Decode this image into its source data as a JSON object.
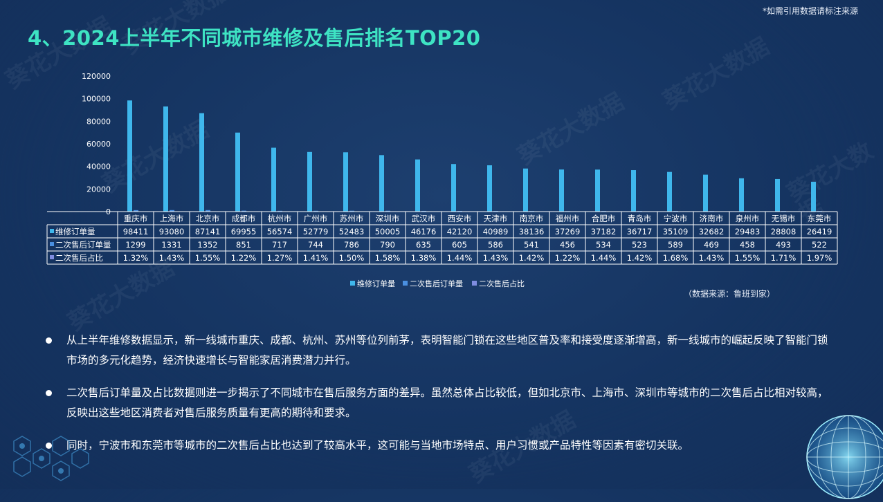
{
  "note": "*如需引用数据请标注来源",
  "title": "4、2024上半年不同城市维修及售后排名TOP20",
  "source": "（数据来源：鲁班到家）",
  "watermark": "葵花大数据",
  "chart_data": {
    "type": "bar",
    "title": "2024上半年不同城市维修及售后排名TOP20",
    "categories": [
      "重庆市",
      "上海市",
      "北京市",
      "成都市",
      "杭州市",
      "广州市",
      "苏州市",
      "深圳市",
      "武汉市",
      "西安市",
      "天津市",
      "南京市",
      "福州市",
      "合肥市",
      "青岛市",
      "宁波市",
      "济南市",
      "泉州市",
      "无锡市",
      "东莞市"
    ],
    "ylim": [
      0,
      120000
    ],
    "yticks": [
      "120000",
      "100000",
      "80000",
      "60000",
      "40000",
      "20000",
      "0"
    ],
    "series": [
      {
        "name": "维修订单量",
        "color": "#3fb7ec",
        "values": [
          98411,
          93080,
          87141,
          69955,
          56574,
          52779,
          52483,
          50005,
          46176,
          42120,
          40989,
          38136,
          37269,
          37182,
          36717,
          35109,
          32682,
          29483,
          28808,
          26419
        ]
      },
      {
        "name": "二次售后订单量",
        "color": "#4a8fe0",
        "values": [
          1299,
          1331,
          1352,
          851,
          717,
          744,
          786,
          790,
          635,
          605,
          586,
          541,
          456,
          534,
          523,
          589,
          469,
          458,
          493,
          522
        ]
      },
      {
        "name": "二次售后占比",
        "color": "#7f8ce0",
        "values": [
          "1.32%",
          "1.43%",
          "1.55%",
          "1.22%",
          "1.27%",
          "1.41%",
          "1.50%",
          "1.58%",
          "1.38%",
          "1.44%",
          "1.43%",
          "1.42%",
          "1.22%",
          "1.44%",
          "1.42%",
          "1.68%",
          "1.43%",
          "1.55%",
          "1.71%",
          "1.97%"
        ]
      }
    ],
    "legend_position": "bottom"
  },
  "bullets": [
    "从上半年维修数据显示，新一线城市重庆、成都、杭州、苏州等位列前茅，表明智能门锁在这些地区普及率和接受度逐渐增高，新一线城市的崛起反映了智能门锁市场的多元化趋势，经济快速增长与智能家居消费潜力并行。",
    "二次售后订单量及占比数据则进一步揭示了不同城市在售后服务方面的差异。虽然总体占比较低，但如北京市、上海市、深圳市等城市的二次售后占比相对较高，反映出这些地区消费者对售后服务质量有更高的期待和要求。",
    "同时，宁波市和东莞市等城市的二次售后占比也达到了较高水平，这可能与当地市场特点、用户习惯或产品特性等因素有密切关联。"
  ]
}
